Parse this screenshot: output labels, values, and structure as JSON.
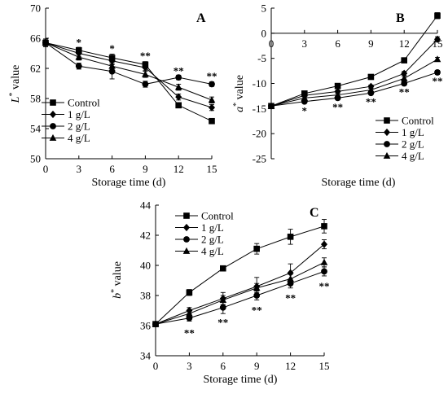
{
  "chart_data": [
    {
      "panel": "A",
      "type": "line",
      "x": [
        0,
        3,
        6,
        9,
        12,
        15
      ],
      "xlabel": "Storage time (d)",
      "ylabel_main": "L",
      "ylabel_sup": "*",
      "ylabel_rest": " value",
      "ylim": [
        50,
        70
      ],
      "yticks": [
        50,
        54,
        58,
        62,
        66,
        70
      ],
      "xticks": [
        0,
        3,
        6,
        9,
        12,
        15
      ],
      "legend_position": "bottom-left",
      "series": [
        {
          "name": "Control",
          "marker": "square",
          "values": [
            65.4,
            64.4,
            63.4,
            62.5,
            57.1,
            55.0
          ],
          "errors": [
            0.5,
            0.4,
            0.5,
            0.4,
            0.3,
            0.3
          ]
        },
        {
          "name": "1 g/L",
          "marker": "diamond",
          "values": [
            65.4,
            64.0,
            63.0,
            62.1,
            58.2,
            56.8
          ],
          "errors": [
            0.5,
            0.4,
            0.5,
            0.4,
            0.4,
            0.4
          ]
        },
        {
          "name": "2 g/L",
          "marker": "circle",
          "values": [
            65.4,
            62.3,
            61.6,
            59.9,
            60.8,
            59.9
          ],
          "errors": [
            0.5,
            0.4,
            1.0,
            0.4,
            0.3,
            0.3
          ]
        },
        {
          "name": "4 g/L",
          "marker": "triangle",
          "values": [
            65.4,
            63.5,
            62.3,
            61.2,
            59.5,
            57.8
          ],
          "errors": [
            0.5,
            0.4,
            0.5,
            0.4,
            0.4,
            0.4
          ]
        }
      ],
      "annotations": [
        {
          "x": 3,
          "y": 65.4,
          "text": "*"
        },
        {
          "x": 6,
          "y": 64.6,
          "text": "*"
        },
        {
          "x": 9,
          "y": 63.6,
          "text": "**"
        },
        {
          "x": 12,
          "y": 61.6,
          "text": "**"
        },
        {
          "x": 15,
          "y": 60.9,
          "text": "**"
        }
      ]
    },
    {
      "panel": "B",
      "type": "line",
      "x": [
        0,
        3,
        6,
        9,
        12,
        15
      ],
      "xlabel": "Storage time (d)",
      "ylabel_main": "a",
      "ylabel_sup": "*",
      "ylabel_rest": " value",
      "ylim": [
        -25,
        5
      ],
      "yticks": [
        -25,
        -20,
        -15,
        -10,
        -5,
        0,
        5
      ],
      "xticks": [
        0,
        3,
        6,
        9,
        12,
        15
      ],
      "legend_position": "bottom-right",
      "series": [
        {
          "name": "Control",
          "marker": "square",
          "values": [
            -14.5,
            -12.0,
            -10.5,
            -8.7,
            -5.4,
            3.5
          ],
          "errors": [
            0.4,
            0.3,
            0.3,
            0.3,
            0.4,
            0.6
          ]
        },
        {
          "name": "1 g/L",
          "marker": "diamond",
          "values": [
            -14.5,
            -12.4,
            -11.6,
            -10.6,
            -8.0,
            -1.2
          ],
          "errors": [
            0.4,
            0.3,
            0.3,
            0.3,
            0.4,
            0.5
          ]
        },
        {
          "name": "2 g/L",
          "marker": "circle",
          "values": [
            -14.5,
            -13.6,
            -12.9,
            -11.9,
            -10.0,
            -7.8
          ],
          "errors": [
            0.4,
            0.3,
            0.3,
            0.3,
            0.4,
            0.4
          ]
        },
        {
          "name": "4 g/L",
          "marker": "triangle",
          "values": [
            -14.5,
            -12.9,
            -12.3,
            -11.3,
            -9.0,
            -5.2
          ],
          "errors": [
            0.4,
            0.3,
            0.3,
            0.3,
            0.4,
            0.4
          ]
        }
      ],
      "annotations": [
        {
          "x": 3,
          "y": -15.5,
          "text": "*"
        },
        {
          "x": 6,
          "y": -14.8,
          "text": "**"
        },
        {
          "x": 9,
          "y": -13.7,
          "text": "**"
        },
        {
          "x": 12,
          "y": -11.8,
          "text": "**"
        },
        {
          "x": 15,
          "y": -9.6,
          "text": "**"
        }
      ]
    },
    {
      "panel": "C",
      "type": "line",
      "x": [
        0,
        3,
        6,
        9,
        12,
        15
      ],
      "xlabel": "Storage time (d)",
      "ylabel_main": "b",
      "ylabel_sup": "*",
      "ylabel_rest": " value",
      "ylim": [
        34,
        44
      ],
      "yticks": [
        34,
        36,
        38,
        40,
        42,
        44
      ],
      "xticks": [
        0,
        3,
        6,
        9,
        12,
        15
      ],
      "legend_position": "top-left",
      "series": [
        {
          "name": "Control",
          "marker": "square",
          "values": [
            36.1,
            38.2,
            39.8,
            41.1,
            41.9,
            42.6
          ],
          "errors": [
            0.15,
            0.2,
            0.15,
            0.35,
            0.5,
            0.45
          ]
        },
        {
          "name": "1 g/L",
          "marker": "diamond",
          "values": [
            36.1,
            37.0,
            37.8,
            38.6,
            39.5,
            41.4
          ],
          "errors": [
            0.15,
            0.2,
            0.4,
            0.6,
            0.6,
            0.3
          ]
        },
        {
          "name": "2 g/L",
          "marker": "circle",
          "values": [
            36.1,
            36.5,
            37.2,
            38.0,
            38.8,
            39.6
          ],
          "errors": [
            0.15,
            0.2,
            0.4,
            0.3,
            0.3,
            0.3
          ]
        },
        {
          "name": "4 g/L",
          "marker": "triangle",
          "values": [
            36.1,
            36.8,
            37.7,
            38.5,
            39.1,
            40.2
          ],
          "errors": [
            0.15,
            0.2,
            0.3,
            0.3,
            0.3,
            0.3
          ]
        }
      ],
      "annotations": [
        {
          "x": 3,
          "y": 35.5,
          "text": "**"
        },
        {
          "x": 6,
          "y": 36.2,
          "text": "**"
        },
        {
          "x": 9,
          "y": 37.0,
          "text": "**"
        },
        {
          "x": 12,
          "y": 37.8,
          "text": "**"
        },
        {
          "x": 15,
          "y": 38.6,
          "text": "**"
        }
      ]
    }
  ]
}
